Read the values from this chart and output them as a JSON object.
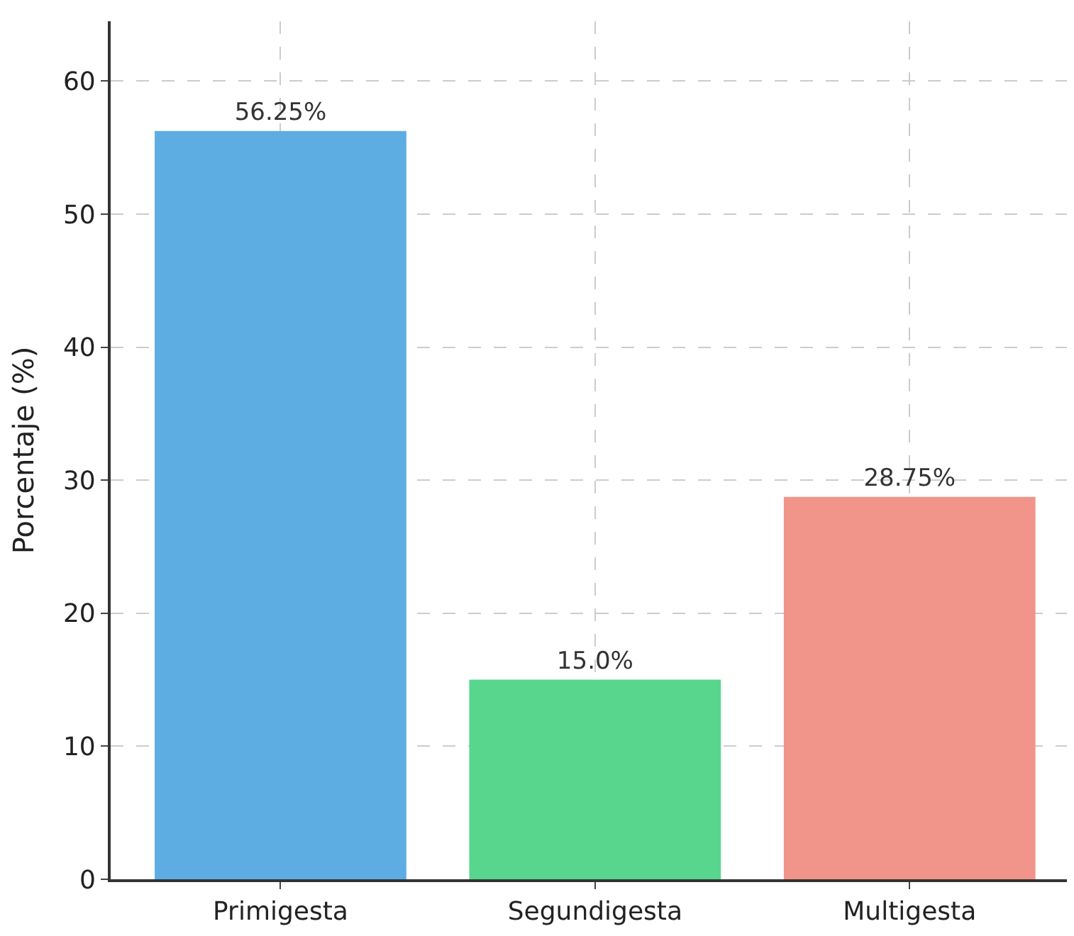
{
  "chart_data": {
    "type": "bar",
    "ylabel": "Porcentaje (%)",
    "categories": [
      "Primigesta",
      "Segundigesta",
      "Multigesta"
    ],
    "values": [
      56.25,
      15.0,
      28.75
    ],
    "colors": [
      "#5dade2",
      "#58d68d",
      "#f1948a"
    ],
    "value_labels": [
      "56.25%",
      "15.0%",
      "28.75%"
    ],
    "ylim": [
      0,
      64.5
    ],
    "yticks": [
      0,
      10,
      20,
      30,
      40,
      50,
      60
    ],
    "grid": true,
    "legend": false
  }
}
